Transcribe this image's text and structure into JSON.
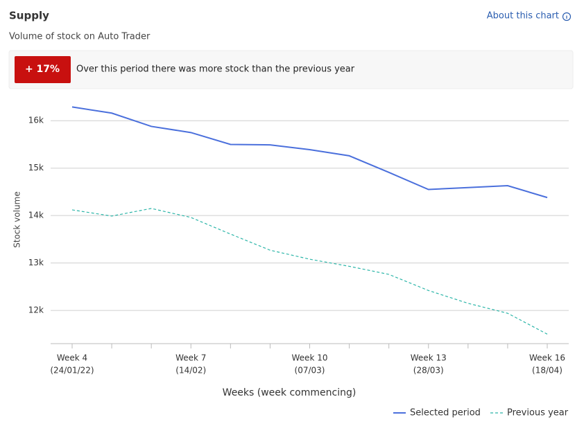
{
  "header": {
    "title": "Supply",
    "subtitle": "Volume of stock on Auto Trader",
    "link": "About this chart"
  },
  "summary": {
    "values": [
      17
    ],
    "value_labels": [
      "+ 17%"
    ],
    "text": "Over this period there was more stock than the previous year"
  },
  "chart_data": {
    "type": "line",
    "x_label": "Weeks (week commencing)",
    "y_label": "Stock volume",
    "categories": [
      "Week 4",
      null,
      null,
      "Week 7",
      null,
      null,
      "Week 10",
      null,
      null,
      "Week 13",
      null,
      null,
      "Week 16"
    ],
    "category_dates": [
      "(24/01/22)",
      null,
      null,
      "(14/02)",
      null,
      null,
      "(07/03)",
      null,
      null,
      "(28/03)",
      null,
      null,
      "(18/04)"
    ],
    "series": [
      {
        "name": "Selected period",
        "color": "#4a6fdc",
        "dashed": false,
        "values": [
          16290,
          16160,
          15880,
          15750,
          15500,
          15490,
          15390,
          15260,
          14910,
          14550,
          14590,
          14630,
          14380
        ]
      },
      {
        "name": "Previous year",
        "color": "#2bb5a8",
        "dashed": true,
        "values": [
          14120,
          13990,
          14150,
          13960,
          13610,
          13270,
          13080,
          12930,
          12760,
          12420,
          12150,
          11940,
          11500
        ]
      }
    ],
    "ylim": [
      11300,
      16500
    ],
    "yticks": [
      {
        "value": 12000,
        "label": "12k"
      },
      {
        "value": 13000,
        "label": "13k"
      },
      {
        "value": 14000,
        "label": "14k"
      },
      {
        "value": 15000,
        "label": "15k"
      },
      {
        "value": 16000,
        "label": "16k"
      }
    ],
    "grid": true
  }
}
